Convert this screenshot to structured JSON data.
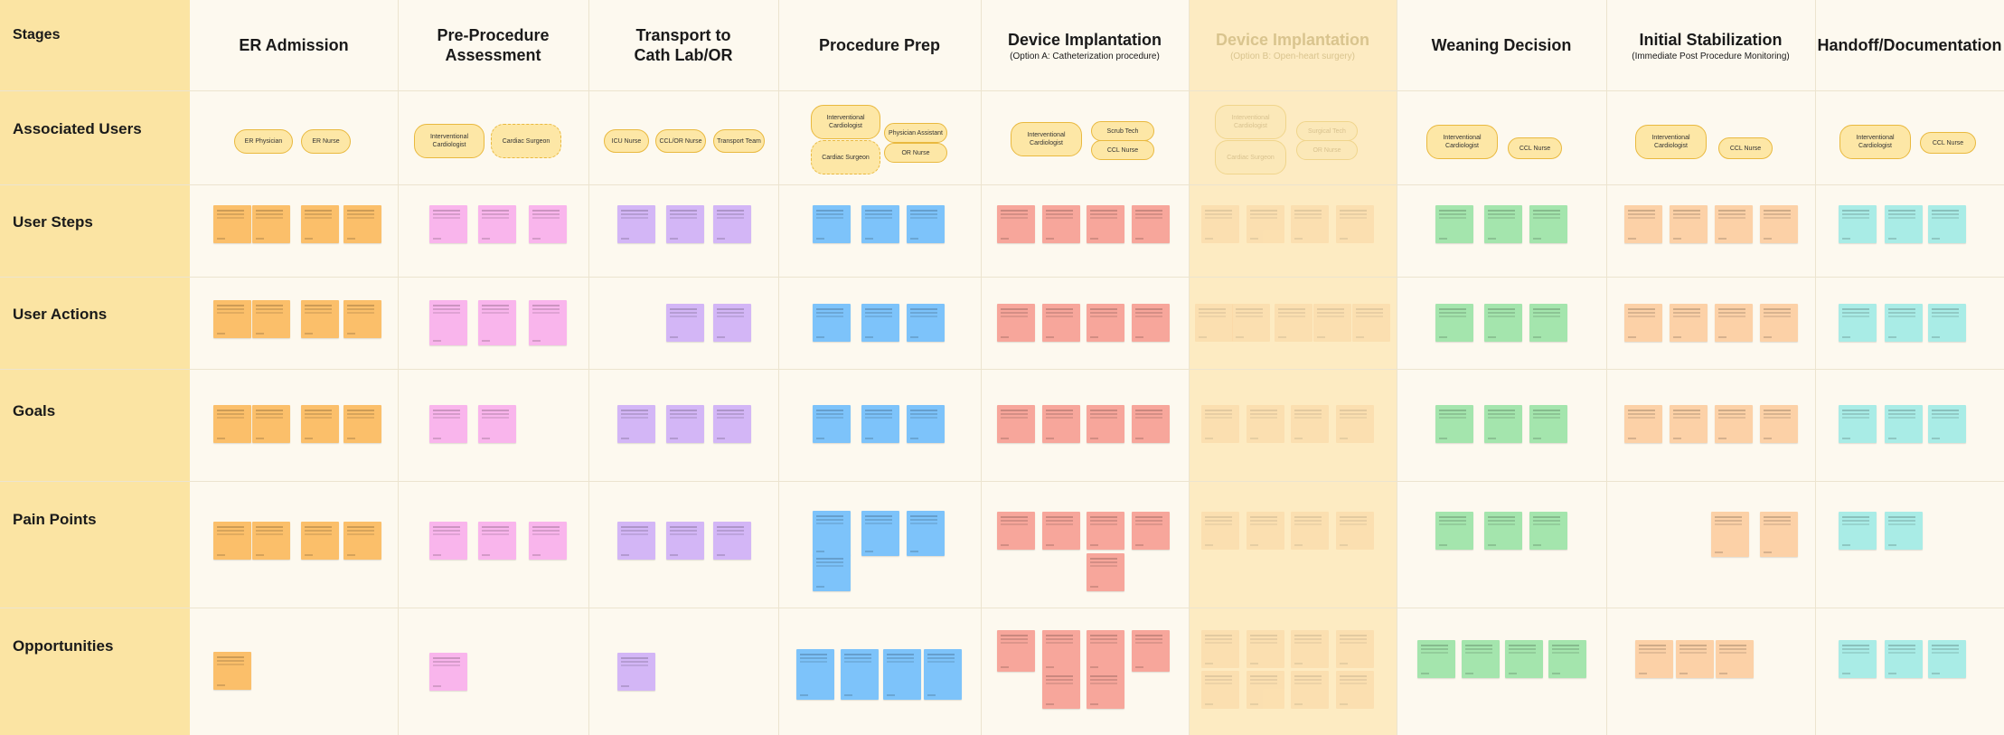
{
  "colors": {
    "sidebar": "#fbe4a3",
    "board": "#fdf9ef",
    "highlight_column": "#fdebc2",
    "pill_fill": "#fde7a6",
    "pill_border": "#e9b93f"
  },
  "rows": [
    {
      "id": "stages",
      "label": "Stages"
    },
    {
      "id": "users",
      "label": "Associated Users"
    },
    {
      "id": "steps",
      "label": "User Steps"
    },
    {
      "id": "actions",
      "label": "User Actions"
    },
    {
      "id": "goals",
      "label": "Goals"
    },
    {
      "id": "pain",
      "label": "Pain Points"
    },
    {
      "id": "opps",
      "label": "Opportunities"
    }
  ],
  "stages": [
    {
      "title": "ER Admission",
      "subtitle": "",
      "faded": false
    },
    {
      "title": "Pre-Procedure\nAssessment",
      "subtitle": "",
      "faded": false
    },
    {
      "title": "Transport to\nCath Lab/OR",
      "subtitle": "",
      "faded": false
    },
    {
      "title": "Procedure Prep",
      "subtitle": "",
      "faded": false
    },
    {
      "title": "Device Implantation",
      "subtitle": "(Option A: Catheterization procedure)",
      "faded": false
    },
    {
      "title": "Device Implantation",
      "subtitle": "(Option B: Open-heart surgery)",
      "faded": true
    },
    {
      "title": "Weaning Decision",
      "subtitle": "",
      "faded": false
    },
    {
      "title": "Initial Stabilization",
      "subtitle": "(Immediate Post Procedure Monitoring)",
      "faded": false
    },
    {
      "title": "Handoff/Documentation",
      "subtitle": "",
      "faded": false
    }
  ],
  "users": [
    {
      "label": "ER Physician",
      "style": "solid"
    },
    {
      "label": "ER Nurse",
      "style": "solid"
    },
    {
      "label": "Interventional\nCardiologist",
      "style": "solid"
    },
    {
      "label": "Cardiac Surgeon",
      "style": "dashed"
    },
    {
      "label": "ICU Nurse",
      "style": "solid"
    },
    {
      "label": "CCL/OR Nurse",
      "style": "solid"
    },
    {
      "label": "Transport Team",
      "style": "solid"
    },
    {
      "label": "Interventional\nCardiologist",
      "style": "solid"
    },
    {
      "label": "Cardiac Surgeon",
      "style": "dashed"
    },
    {
      "label": "Physician Assistant",
      "style": "solid"
    },
    {
      "label": "OR Nurse",
      "style": "solid"
    },
    {
      "label": "Interventional\nCardiologist",
      "style": "solid"
    },
    {
      "label": "Scrub Tech",
      "style": "solid"
    },
    {
      "label": "CCL Nurse",
      "style": "solid"
    },
    {
      "label": "Interventional\nCardiologist",
      "style": "faded"
    },
    {
      "label": "Cardiac Surgeon",
      "style": "faded"
    },
    {
      "label": "Surgical Tech",
      "style": "faded"
    },
    {
      "label": "OR Nurse",
      "style": "faded"
    },
    {
      "label": "Interventional\nCardiologist",
      "style": "solid"
    },
    {
      "label": "CCL Nurse",
      "style": "solid"
    },
    {
      "label": "Interventional\nCardiologist",
      "style": "solid"
    },
    {
      "label": "CCL Nurse",
      "style": "solid"
    },
    {
      "label": "Interventional\nCardiologist",
      "style": "solid"
    },
    {
      "label": "CCL Nurse",
      "style": "solid"
    }
  ]
}
